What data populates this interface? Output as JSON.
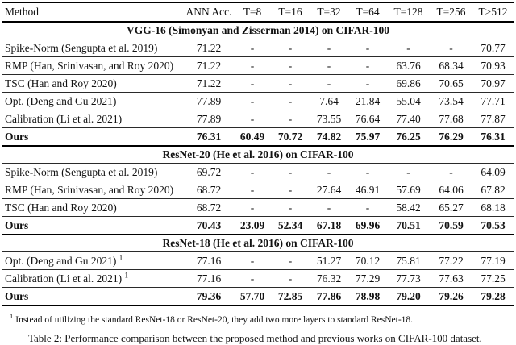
{
  "table": {
    "columns": [
      "Method",
      "ANN Acc.",
      "T=8",
      "T=16",
      "T=32",
      "T=64",
      "T=128",
      "T=256",
      "T≥512"
    ],
    "sections": [
      {
        "title": "VGG-16 (Simonyan and Zisserman 2014) on CIFAR-100",
        "rows": [
          {
            "method": "Spike-Norm (Sengupta et al. 2019)",
            "footnote_ref": "",
            "bold": false,
            "values": [
              "71.22",
              "-",
              "-",
              "-",
              "-",
              "-",
              "-",
              "70.77"
            ]
          },
          {
            "method": "RMP (Han, Srinivasan, and Roy 2020)",
            "footnote_ref": "",
            "bold": false,
            "values": [
              "71.22",
              "-",
              "-",
              "-",
              "-",
              "63.76",
              "68.34",
              "70.93"
            ]
          },
          {
            "method": "TSC (Han and Roy 2020)",
            "footnote_ref": "",
            "bold": false,
            "values": [
              "71.22",
              "-",
              "-",
              "-",
              "-",
              "69.86",
              "70.65",
              "70.97"
            ]
          },
          {
            "method": "Opt. (Deng and Gu 2021)",
            "footnote_ref": "",
            "bold": false,
            "values": [
              "77.89",
              "-",
              "-",
              "7.64",
              "21.84",
              "55.04",
              "73.54",
              "77.71"
            ]
          },
          {
            "method": "Calibration (Li et al. 2021)",
            "footnote_ref": "",
            "bold": false,
            "values": [
              "77.89",
              "-",
              "-",
              "73.55",
              "76.64",
              "77.40",
              "77.68",
              "77.87"
            ]
          },
          {
            "method": "Ours",
            "footnote_ref": "",
            "bold": true,
            "values": [
              "76.31",
              "60.49",
              "70.72",
              "74.82",
              "75.97",
              "76.25",
              "76.29",
              "76.31"
            ]
          }
        ]
      },
      {
        "title": "ResNet-20 (He et al. 2016) on CIFAR-100",
        "rows": [
          {
            "method": "Spike-Norm (Sengupta et al. 2019)",
            "footnote_ref": "",
            "bold": false,
            "values": [
              "69.72",
              "-",
              "-",
              "-",
              "-",
              "-",
              "-",
              "64.09"
            ]
          },
          {
            "method": "RMP (Han, Srinivasan, and Roy 2020)",
            "footnote_ref": "",
            "bold": false,
            "values": [
              "68.72",
              "-",
              "-",
              "27.64",
              "46.91",
              "57.69",
              "64.06",
              "67.82"
            ]
          },
          {
            "method": "TSC (Han and Roy 2020)",
            "footnote_ref": "",
            "bold": false,
            "values": [
              "68.72",
              "-",
              "-",
              "-",
              "-",
              "58.42",
              "65.27",
              "68.18"
            ]
          },
          {
            "method": "Ours",
            "footnote_ref": "",
            "bold": true,
            "values": [
              "70.43",
              "23.09",
              "52.34",
              "67.18",
              "69.96",
              "70.51",
              "70.59",
              "70.53"
            ]
          }
        ]
      },
      {
        "title": "ResNet-18 (He et al. 2016) on CIFAR-100",
        "rows": [
          {
            "method": "Opt. (Deng and Gu 2021)",
            "footnote_ref": "1",
            "bold": false,
            "values": [
              "77.16",
              "-",
              "-",
              "51.27",
              "70.12",
              "75.81",
              "77.22",
              "77.19"
            ]
          },
          {
            "method": "Calibration (Li et al. 2021)",
            "footnote_ref": "1",
            "bold": false,
            "values": [
              "77.16",
              "-",
              "-",
              "76.32",
              "77.29",
              "77.73",
              "77.63",
              "77.25"
            ]
          },
          {
            "method": "Ours",
            "footnote_ref": "",
            "bold": true,
            "values": [
              "79.36",
              "57.70",
              "72.85",
              "77.86",
              "78.98",
              "79.20",
              "79.26",
              "79.28"
            ]
          }
        ]
      }
    ],
    "footnote_marker": "1",
    "footnote_text": "Instead of utilizing the standard ResNet-18 or ResNet-20, they add two more layers to standard ResNet-18.",
    "caption": "Table 2: Performance comparison between the proposed method and previous works on CIFAR-100 dataset."
  }
}
